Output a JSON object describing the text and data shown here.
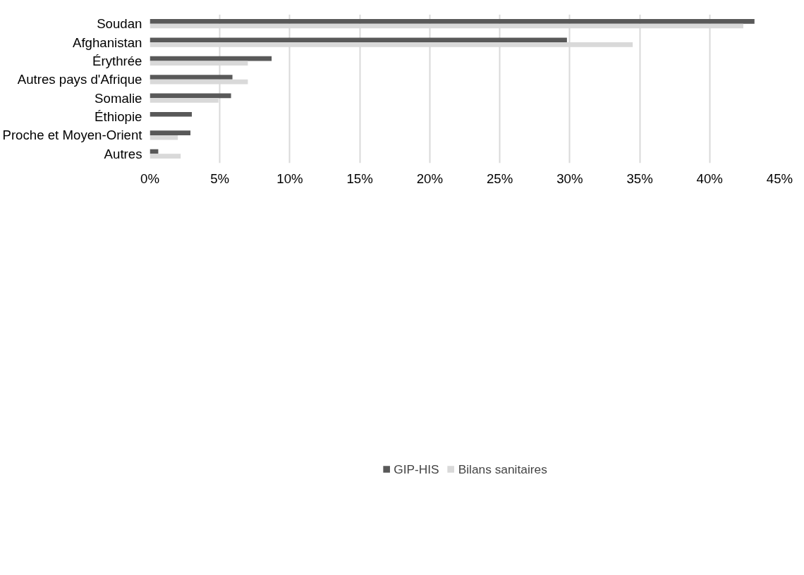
{
  "chart_data": {
    "type": "bar",
    "orientation": "horizontal",
    "categories": [
      "Soudan",
      "Afghanistan",
      "Érythrée",
      "Autres pays d'Afrique",
      "Somalie",
      "Éthiopie",
      "Proche et Moyen-Orient",
      "Autres"
    ],
    "series": [
      {
        "name": "GIP-HIS",
        "color": "#595959",
        "values": [
          43.2,
          29.8,
          8.7,
          5.9,
          5.8,
          3.0,
          2.9,
          0.6
        ]
      },
      {
        "name": "Bilans sanitaires",
        "color": "#d9d9d9",
        "values": [
          42.4,
          34.5,
          7.0,
          7.0,
          4.9,
          null,
          2.0,
          2.2
        ]
      }
    ],
    "xlim": [
      0,
      45
    ],
    "xticks": [
      {
        "value": 0,
        "label": "0%"
      },
      {
        "value": 5,
        "label": "5%"
      },
      {
        "value": 10,
        "label": "10%"
      },
      {
        "value": 15,
        "label": "15%"
      },
      {
        "value": 20,
        "label": "20%"
      },
      {
        "value": 25,
        "label": "25%"
      },
      {
        "value": 30,
        "label": "30%"
      },
      {
        "value": 35,
        "label": "35%"
      },
      {
        "value": 40,
        "label": "40%"
      },
      {
        "value": 45,
        "label": "45%"
      }
    ],
    "grid": "x",
    "legend": "bottom"
  }
}
